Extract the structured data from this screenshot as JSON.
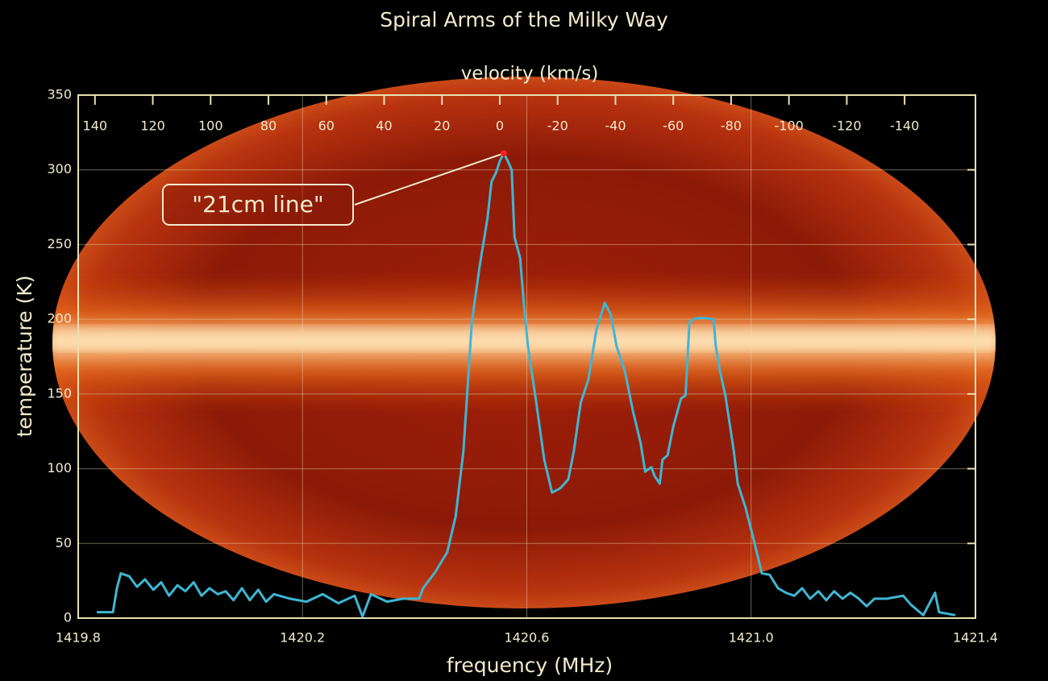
{
  "chart_data": {
    "type": "line",
    "title": "Spiral Arms of the Milky Way",
    "xlabel": "frequency (MHz)",
    "ylabel": "temperature (K)",
    "x2label": "velocity (km/s)",
    "color": "#3fb6d3",
    "x": [
      1419.833,
      1419.862,
      1419.869,
      1419.876,
      1419.891,
      1419.905,
      1419.919,
      1419.934,
      1419.948,
      1419.962,
      1419.977,
      1419.991,
      1420.006,
      1420.02,
      1420.034,
      1420.049,
      1420.063,
      1420.077,
      1420.092,
      1420.106,
      1420.121,
      1420.135,
      1420.149,
      1420.178,
      1420.207,
      1420.236,
      1420.264,
      1420.293,
      1420.307,
      1420.322,
      1420.351,
      1420.379,
      1420.408,
      1420.415,
      1420.437,
      1420.458,
      1420.473,
      1420.487,
      1420.502,
      1420.516,
      1420.53,
      1420.537,
      1420.545,
      1420.552,
      1420.559,
      1420.566,
      1420.573,
      1420.578,
      1420.588,
      1420.595,
      1420.602,
      1420.617,
      1420.631,
      1420.645,
      1420.66,
      1420.674,
      1420.684,
      1420.696,
      1420.71,
      1420.724,
      1420.739,
      1420.75,
      1420.76,
      1420.775,
      1420.789,
      1420.803,
      1420.811,
      1420.822,
      1420.828,
      1420.837,
      1420.842,
      1420.851,
      1420.861,
      1420.875,
      1420.883,
      1420.89,
      1420.897,
      1420.911,
      1420.933,
      1420.937,
      1420.944,
      1420.954,
      1420.969,
      1420.976,
      1420.99,
      1421.005,
      1421.019,
      1421.033,
      1421.048,
      1421.062,
      1421.077,
      1421.091,
      1421.105,
      1421.12,
      1421.134,
      1421.148,
      1421.163,
      1421.177,
      1421.192,
      1421.206,
      1421.22,
      1421.242,
      1421.271,
      1421.285,
      1421.307,
      1421.328,
      1421.335,
      1421.364
    ],
    "values": [
      4,
      4,
      20,
      30,
      28,
      21,
      26,
      19,
      24,
      15,
      22,
      18,
      24,
      15,
      20,
      16,
      18,
      12,
      20,
      12,
      19,
      11,
      16,
      13,
      11,
      16,
      10,
      15,
      1,
      16,
      11,
      13,
      13,
      20,
      31,
      44,
      68,
      112,
      198,
      236,
      268,
      292,
      298,
      306,
      311,
      306,
      300,
      255,
      241,
      209,
      182,
      144,
      106,
      84,
      87,
      93,
      112,
      144,
      160,
      193,
      211,
      203,
      182,
      165,
      139,
      117,
      98,
      101,
      95,
      90,
      106,
      109,
      128,
      147,
      149,
      198,
      200,
      201,
      200,
      182,
      166,
      149,
      112,
      90,
      74,
      52,
      30,
      29,
      20,
      17,
      15,
      20,
      13,
      18,
      12,
      18,
      13,
      17,
      13,
      8,
      13,
      13,
      15,
      9,
      2,
      17,
      4,
      2
    ],
    "xlim": [
      1419.8,
      1421.4
    ],
    "xticks": [
      1419.8,
      1420.2,
      1420.6,
      {
        "value": 1421,
        "label": "1421.0"
      },
      1421.4
    ],
    "ylim": [
      0,
      350
    ],
    "yticks": [
      0,
      50,
      100,
      150,
      200,
      250,
      300,
      350
    ],
    "x2lim": [
      145.8,
      -164.5
    ],
    "x2ticks": [
      140,
      120,
      100,
      80,
      60,
      40,
      20,
      0,
      -20,
      -40,
      -60,
      -80,
      -100,
      -120,
      -140
    ],
    "grid": true,
    "annotation": {
      "text": "\"21cm line\"",
      "x": 1420.559,
      "y": 311
    }
  }
}
